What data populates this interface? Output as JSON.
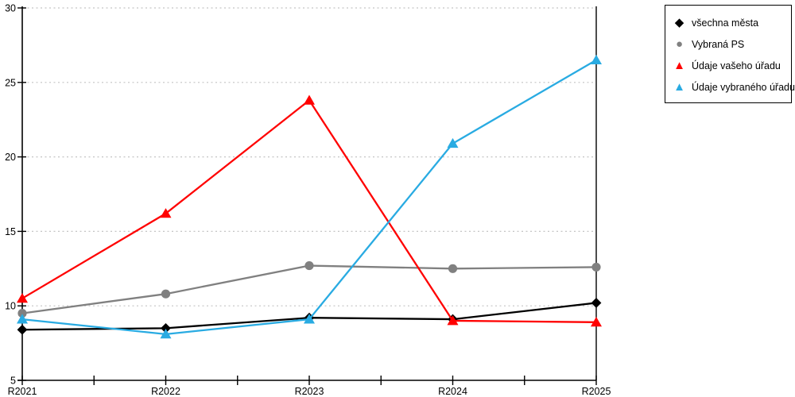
{
  "chart_data": {
    "type": "line",
    "title": "",
    "xlabel": "",
    "ylabel": "",
    "categories": [
      "R2021",
      "R2022",
      "R2023",
      "R2024",
      "R2025"
    ],
    "series": [
      {
        "name": "všechna města",
        "marker": "diamond",
        "color": "#000000",
        "values": [
          8.4,
          8.5,
          9.2,
          9.1,
          10.2
        ]
      },
      {
        "name": "Vybraná PS",
        "marker": "circle",
        "color": "#808080",
        "values": [
          9.5,
          10.8,
          12.7,
          12.5,
          12.6
        ]
      },
      {
        "name": "Údaje vašeho úřadu",
        "marker": "triangle",
        "color": "#ff0000",
        "values": [
          10.5,
          16.2,
          23.8,
          9.0,
          8.9
        ]
      },
      {
        "name": "Údaje vybraného úřadu",
        "marker": "triangle",
        "color": "#29abe2",
        "values": [
          9.1,
          8.1,
          9.1,
          20.9,
          26.5
        ]
      }
    ],
    "ylim": [
      5,
      30
    ],
    "yticks": [
      5,
      10,
      15,
      20,
      25,
      30
    ],
    "minor_ticks_between_categories": true,
    "grid": "horizontal-dotted",
    "gridline_color": "#c4c4c4",
    "axis_color": "#000000",
    "legend_position": "top-right",
    "plot_border_right": true
  }
}
